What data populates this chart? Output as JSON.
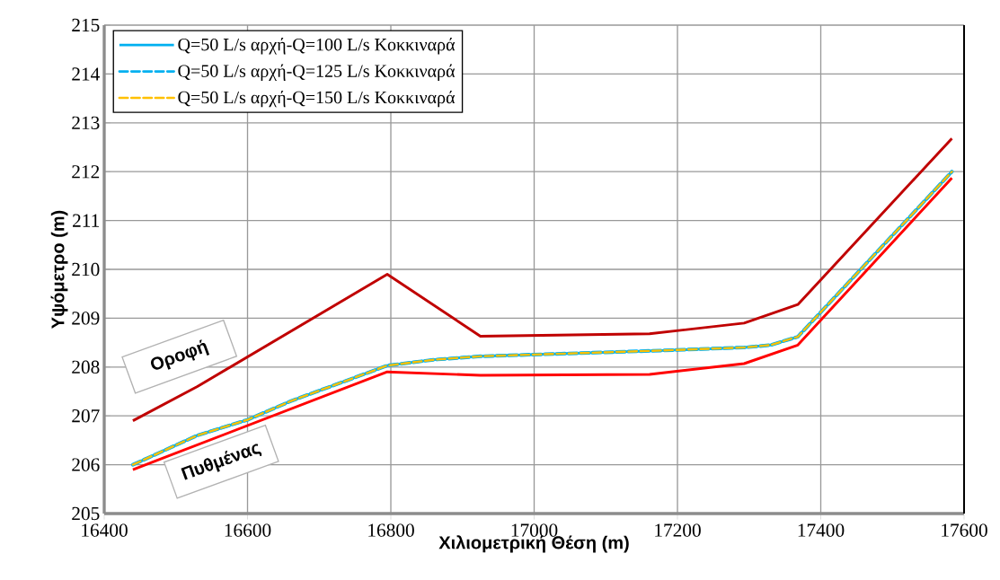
{
  "chart_data": {
    "type": "line",
    "xlabel": "Χιλιομετρική Θέση (m)",
    "ylabel": "Υψόμετρο (m)",
    "xlim": [
      16400,
      17600
    ],
    "xticks": [
      16400,
      16600,
      16800,
      17000,
      17200,
      17400,
      17600
    ],
    "ylim": [
      205,
      215
    ],
    "yticks": [
      205,
      206,
      207,
      208,
      209,
      210,
      211,
      212,
      213,
      214,
      215
    ],
    "grid": true,
    "legend": "top left",
    "marker": "none",
    "series": [
      {
        "color": "#c00000",
        "line_style": "solid",
        "x": [
          16440,
          16530,
          16795,
          16925,
          17161,
          17293,
          17368,
          17583
        ],
        "values": [
          206.9,
          207.6,
          209.9,
          208.63,
          208.68,
          208.9,
          209.28,
          212.68
        ]
      },
      {
        "color": "#ff0000",
        "line_style": "solid",
        "x": [
          16440,
          16795,
          16925,
          17161,
          17293,
          17368,
          17583
        ],
        "values": [
          205.9,
          207.9,
          207.83,
          207.85,
          208.07,
          208.45,
          211.87
        ]
      },
      {
        "name": "Q=50 L/s αρχή-Q=100 L/s Κοκκιναρά",
        "color": "#00b0f0",
        "line_style": "solid",
        "x": [
          16440,
          16530,
          16600,
          16660,
          16795,
          16860,
          16925,
          17161,
          17293,
          17330,
          17368,
          17583
        ],
        "values": [
          206.0,
          206.6,
          206.92,
          207.3,
          208.03,
          208.15,
          208.22,
          208.33,
          208.4,
          208.45,
          208.62,
          212.0
        ]
      },
      {
        "name": "Q=50 L/s αρχή-Q=125 L/s Κοκκιναρά",
        "color": "#00b0f0",
        "line_style": "dashed",
        "x": [
          16440,
          16530,
          16600,
          16660,
          16795,
          16860,
          16925,
          17161,
          17293,
          17330,
          17368,
          17583
        ],
        "values": [
          206.0,
          206.6,
          206.92,
          207.3,
          208.03,
          208.15,
          208.22,
          208.33,
          208.4,
          208.45,
          208.62,
          212.0
        ]
      },
      {
        "name": "Q=50 L/s αρχή-Q=150 L/s Κοκκιναρά",
        "color": "#ffc000",
        "line_style": "dashed",
        "x": [
          16440,
          16530,
          16600,
          16660,
          16795,
          16860,
          16925,
          17161,
          17293,
          17330,
          17368,
          17583
        ],
        "values": [
          206.0,
          206.6,
          206.92,
          207.3,
          208.03,
          208.15,
          208.22,
          208.33,
          208.4,
          208.45,
          208.62,
          212.0
        ]
      }
    ],
    "annotations": [
      {
        "text": "Οροφή",
        "x": 16530,
        "y": 207.6
      },
      {
        "text": "Πυθμένας",
        "x": 16555,
        "y": 206.6
      }
    ]
  }
}
